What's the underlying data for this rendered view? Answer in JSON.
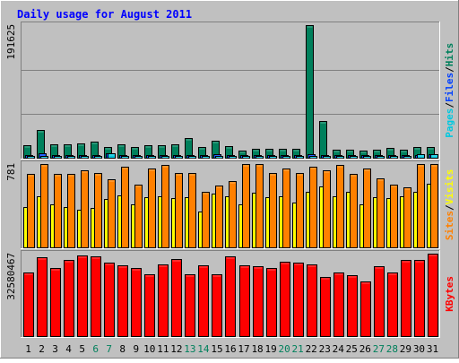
{
  "title": "Daily usage for August 2011",
  "colors": {
    "background": "#c0c0c0",
    "frame_light": "#ffffff",
    "frame_dark": "#808080",
    "title": "#0000ff",
    "gridline": "#808080",
    "hits": "#00805c",
    "files": "#0040ff",
    "pages": "#00c8e0",
    "visits": "#ffff00",
    "sites": "#ff8000",
    "kbytes": "#ff0000",
    "day_normal": "#000000",
    "day_weekend": "#00805c"
  },
  "chart_data": [
    {
      "type": "bar",
      "title": "Daily usage for August 2011",
      "panel": "hits_files_pages",
      "label_parts": [
        "Pages",
        "/",
        "Files",
        "/",
        "Hits"
      ],
      "label_colors": [
        "#00c8e0",
        "#000000",
        "#0040ff",
        "#000000",
        "#00805c"
      ],
      "max_label": "191625",
      "ylim": [
        0,
        191625
      ],
      "categories": [
        "1",
        "2",
        "3",
        "4",
        "5",
        "6",
        "7",
        "8",
        "9",
        "10",
        "11",
        "12",
        "13",
        "14",
        "15",
        "16",
        "17",
        "18",
        "19",
        "20",
        "21",
        "22",
        "23",
        "24",
        "25",
        "26",
        "27",
        "28",
        "29",
        "30",
        "31"
      ],
      "weekend_days": [
        "6",
        "7",
        "13",
        "14",
        "20",
        "21",
        "27",
        "28"
      ],
      "series": [
        {
          "name": "Hits",
          "color": "#00805c",
          "values": [
            18000,
            40000,
            20000,
            20000,
            21000,
            23000,
            15000,
            19000,
            16000,
            18000,
            18000,
            19000,
            28000,
            16000,
            25000,
            17000,
            11000,
            13000,
            13000,
            13000,
            13000,
            191625,
            53000,
            12000,
            12000,
            10000,
            12000,
            14000,
            12000,
            15000,
            16000
          ]
        },
        {
          "name": "Files",
          "color": "#0040ff",
          "values": [
            4000,
            6000,
            4000,
            4000,
            4000,
            4000,
            6000,
            4000,
            4000,
            4000,
            4000,
            4000,
            4000,
            4000,
            5000,
            4000,
            4000,
            4000,
            4000,
            4000,
            4000,
            5000,
            4000,
            4000,
            4000,
            4000,
            4000,
            4000,
            4000,
            4000,
            5000
          ]
        },
        {
          "name": "Pages",
          "color": "#00c8e0",
          "values": [
            3000,
            3000,
            2000,
            2000,
            2000,
            2000,
            6000,
            2000,
            2000,
            2000,
            2000,
            2000,
            2000,
            2000,
            2000,
            2000,
            2000,
            2000,
            2000,
            2000,
            2000,
            3000,
            2000,
            2000,
            2000,
            2000,
            2000,
            2000,
            2000,
            5000,
            5000
          ]
        }
      ]
    },
    {
      "type": "bar",
      "panel": "sites_visits",
      "label_parts": [
        "Sites",
        "/",
        "Visits"
      ],
      "label_colors": [
        "#ff8000",
        "#000000",
        "#ffff00"
      ],
      "max_label": "781",
      "ylim": [
        0,
        781
      ],
      "series": [
        {
          "name": "Visits",
          "color": "#ffff00",
          "values": [
            380,
            480,
            400,
            380,
            350,
            370,
            450,
            490,
            400,
            470,
            480,
            460,
            470,
            340,
            500,
            480,
            400,
            510,
            470,
            480,
            420,
            520,
            570,
            480,
            520,
            400,
            470,
            460,
            480,
            520,
            600
          ]
        },
        {
          "name": "Sites",
          "color": "#ff8000",
          "values": [
            690,
            780,
            690,
            690,
            720,
            700,
            640,
            760,
            590,
            740,
            770,
            700,
            700,
            520,
            580,
            620,
            780,
            780,
            700,
            740,
            700,
            760,
            720,
            770,
            690,
            740,
            650,
            590,
            560,
            780,
            781
          ]
        }
      ]
    },
    {
      "type": "bar",
      "panel": "kbytes",
      "label_parts": [
        "KBytes"
      ],
      "label_colors": [
        "#ff0000"
      ],
      "max_label": "32580467",
      "ylim": [
        0,
        32580467
      ],
      "series": [
        {
          "name": "KBytes",
          "color": "#ff0000",
          "values": [
            25000000,
            31000000,
            27000000,
            30000000,
            32000000,
            31500000,
            29000000,
            28000000,
            27000000,
            24500000,
            28500000,
            30500000,
            24500000,
            28000000,
            24500000,
            31500000,
            28000000,
            27500000,
            27000000,
            29500000,
            29000000,
            28500000,
            23500000,
            25000000,
            24000000,
            21500000,
            27500000,
            25000000,
            30000000,
            30000000,
            32580467
          ]
        }
      ]
    }
  ]
}
